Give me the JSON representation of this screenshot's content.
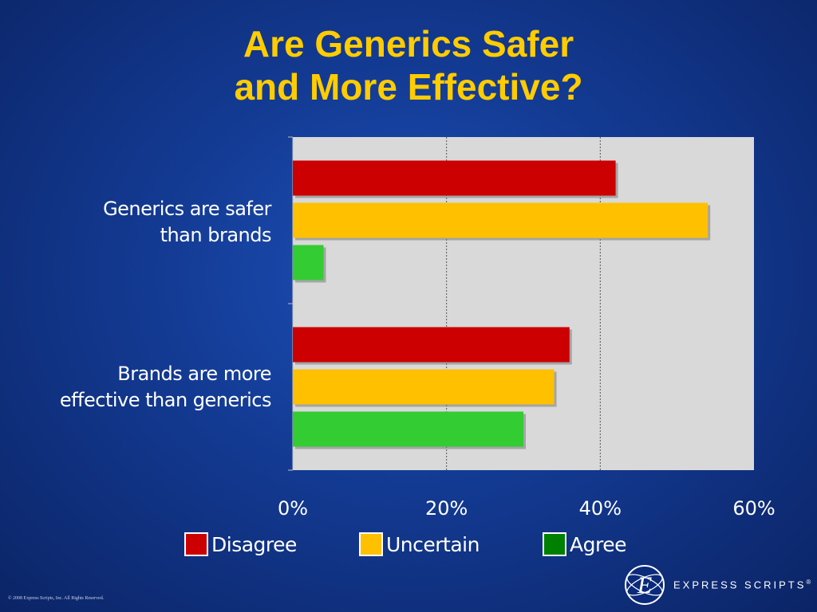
{
  "title": {
    "line1": "Are Generics Safer",
    "line2": "and More Effective?"
  },
  "colors": {
    "background": "#133a92",
    "title": "#ffcc00",
    "plot_area": "#d9d9d9",
    "disagree": "#cc0000",
    "uncertain": "#ffc000",
    "agree": "#33cc33",
    "agree_legend": "#008000"
  },
  "chart_data": {
    "type": "bar",
    "orientation": "horizontal",
    "categories": [
      {
        "line1": "Generics are safer",
        "line2": "than brands"
      },
      {
        "line1": "Brands are more",
        "line2": "effective than generics"
      }
    ],
    "series": [
      {
        "name": "Disagree",
        "values": [
          42,
          36
        ]
      },
      {
        "name": "Uncertain",
        "values": [
          54,
          34
        ]
      },
      {
        "name": "Agree",
        "values": [
          4,
          30
        ]
      }
    ],
    "xlim": [
      0,
      60
    ],
    "x_ticks": [
      "0%",
      "20%",
      "40%",
      "60%"
    ],
    "x_tick_values": [
      0,
      20,
      40,
      60
    ],
    "grid": "vertical dashed",
    "legend_position": "bottom"
  },
  "legend": [
    {
      "label": "Disagree",
      "color": "#cc0000"
    },
    {
      "label": "Uncertain",
      "color": "#ffc000"
    },
    {
      "label": "Agree",
      "color": "#008000"
    }
  ],
  "logo": {
    "text": "EXPRESS SCRIPTS",
    "mark": "®",
    "icon": "express-scripts-globe-icon"
  },
  "footer": {
    "copyright": "© 2008 Express Scripts, Inc. All Rights Reserved."
  }
}
